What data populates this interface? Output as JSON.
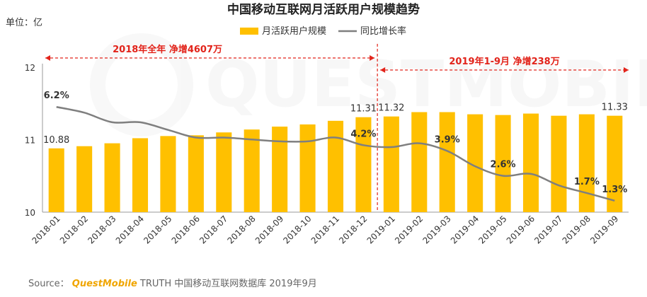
{
  "chart_data": {
    "type": "bar",
    "title": "中国移动互联网月活跃用户规模趋势",
    "unit_label": "单位：亿",
    "categories": [
      "2018-01",
      "2018-02",
      "2018-03",
      "2018-04",
      "2018-05",
      "2018-06",
      "2018-07",
      "2018-08",
      "2018-09",
      "2018-10",
      "2018-11",
      "2018-12",
      "2019-01",
      "2019-02",
      "2019-03",
      "2019-04",
      "2019-05",
      "2019-06",
      "2019-07",
      "2019-08",
      "2019-09"
    ],
    "series": [
      {
        "name": "月活跃用户规模",
        "type": "bar",
        "color": "#ffc000",
        "values": [
          10.88,
          10.91,
          10.95,
          11.02,
          11.05,
          11.06,
          11.1,
          11.14,
          11.18,
          11.21,
          11.26,
          11.31,
          11.32,
          11.38,
          11.38,
          11.35,
          11.34,
          11.36,
          11.33,
          11.35,
          11.33
        ]
      },
      {
        "name": "同比增长率",
        "type": "line",
        "color": "#7f7f7f",
        "values": [
          6.2,
          5.9,
          5.4,
          5.4,
          5.0,
          4.6,
          4.6,
          4.5,
          4.4,
          4.4,
          4.6,
          4.2,
          4.1,
          4.3,
          3.9,
          3.1,
          2.6,
          2.7,
          2.1,
          1.7,
          1.3
        ]
      }
    ],
    "ylim": [
      10,
      12
    ],
    "yticks": [
      "10",
      "11",
      "12"
    ],
    "bar_labels": [
      {
        "index": 0,
        "text": "10.88"
      },
      {
        "index": 11,
        "text": "11.31"
      },
      {
        "index": 12,
        "text": "11.32"
      },
      {
        "index": 20,
        "text": "11.33"
      }
    ],
    "rate_labels": [
      {
        "index": 0,
        "text": "6.2%"
      },
      {
        "index": 11,
        "text": "4.2%"
      },
      {
        "index": 14,
        "text": "3.9%"
      },
      {
        "index": 16,
        "text": "2.6%"
      },
      {
        "index": 19,
        "text": "1.7%"
      },
      {
        "index": 20,
        "text": "1.3%"
      }
    ],
    "annotations": [
      {
        "text": "2018年全年 净增4607万",
        "from_index": 0,
        "to_index": 11
      },
      {
        "text": "2019年1-9月 净增238万",
        "from_index": 12,
        "to_index": 20
      }
    ],
    "legend_position": "top-center",
    "grid": false
  },
  "source": {
    "label": "Source：",
    "brand": "QuestMobile",
    "text": "TRUTH 中国移动互联网数据库 2019年9月"
  },
  "watermark": "QUESTMOBILE"
}
